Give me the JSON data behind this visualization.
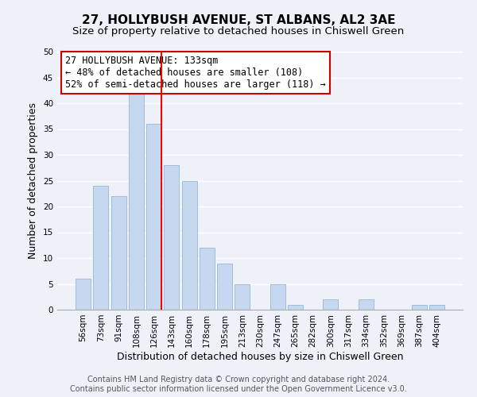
{
  "title": "27, HOLLYBUSH AVENUE, ST ALBANS, AL2 3AE",
  "subtitle": "Size of property relative to detached houses in Chiswell Green",
  "xlabel": "Distribution of detached houses by size in Chiswell Green",
  "ylabel": "Number of detached properties",
  "bar_labels": [
    "56sqm",
    "73sqm",
    "91sqm",
    "108sqm",
    "126sqm",
    "143sqm",
    "160sqm",
    "178sqm",
    "195sqm",
    "213sqm",
    "230sqm",
    "247sqm",
    "265sqm",
    "282sqm",
    "300sqm",
    "317sqm",
    "334sqm",
    "352sqm",
    "369sqm",
    "387sqm",
    "404sqm"
  ],
  "bar_values": [
    6,
    24,
    22,
    42,
    36,
    28,
    25,
    12,
    9,
    5,
    0,
    5,
    1,
    0,
    2,
    0,
    2,
    0,
    0,
    1,
    1
  ],
  "bar_color": "#c5d8f0",
  "bar_edgecolor": "#a0bcd8",
  "redline_index": 4,
  "ylim": [
    0,
    50
  ],
  "yticks": [
    0,
    5,
    10,
    15,
    20,
    25,
    30,
    35,
    40,
    45,
    50
  ],
  "annotation_title": "27 HOLLYBUSH AVENUE: 133sqm",
  "annotation_line1": "← 48% of detached houses are smaller (108)",
  "annotation_line2": "52% of semi-detached houses are larger (118) →",
  "annotation_box_edgecolor": "#cc0000",
  "footer_line1": "Contains HM Land Registry data © Crown copyright and database right 2024.",
  "footer_line2": "Contains public sector information licensed under the Open Government Licence v3.0.",
  "background_color": "#eef2f8",
  "grid_color": "#ffffff",
  "title_fontsize": 11,
  "subtitle_fontsize": 9.5,
  "axis_label_fontsize": 9,
  "tick_fontsize": 7.5,
  "annotation_fontsize": 8.5,
  "footer_fontsize": 7
}
